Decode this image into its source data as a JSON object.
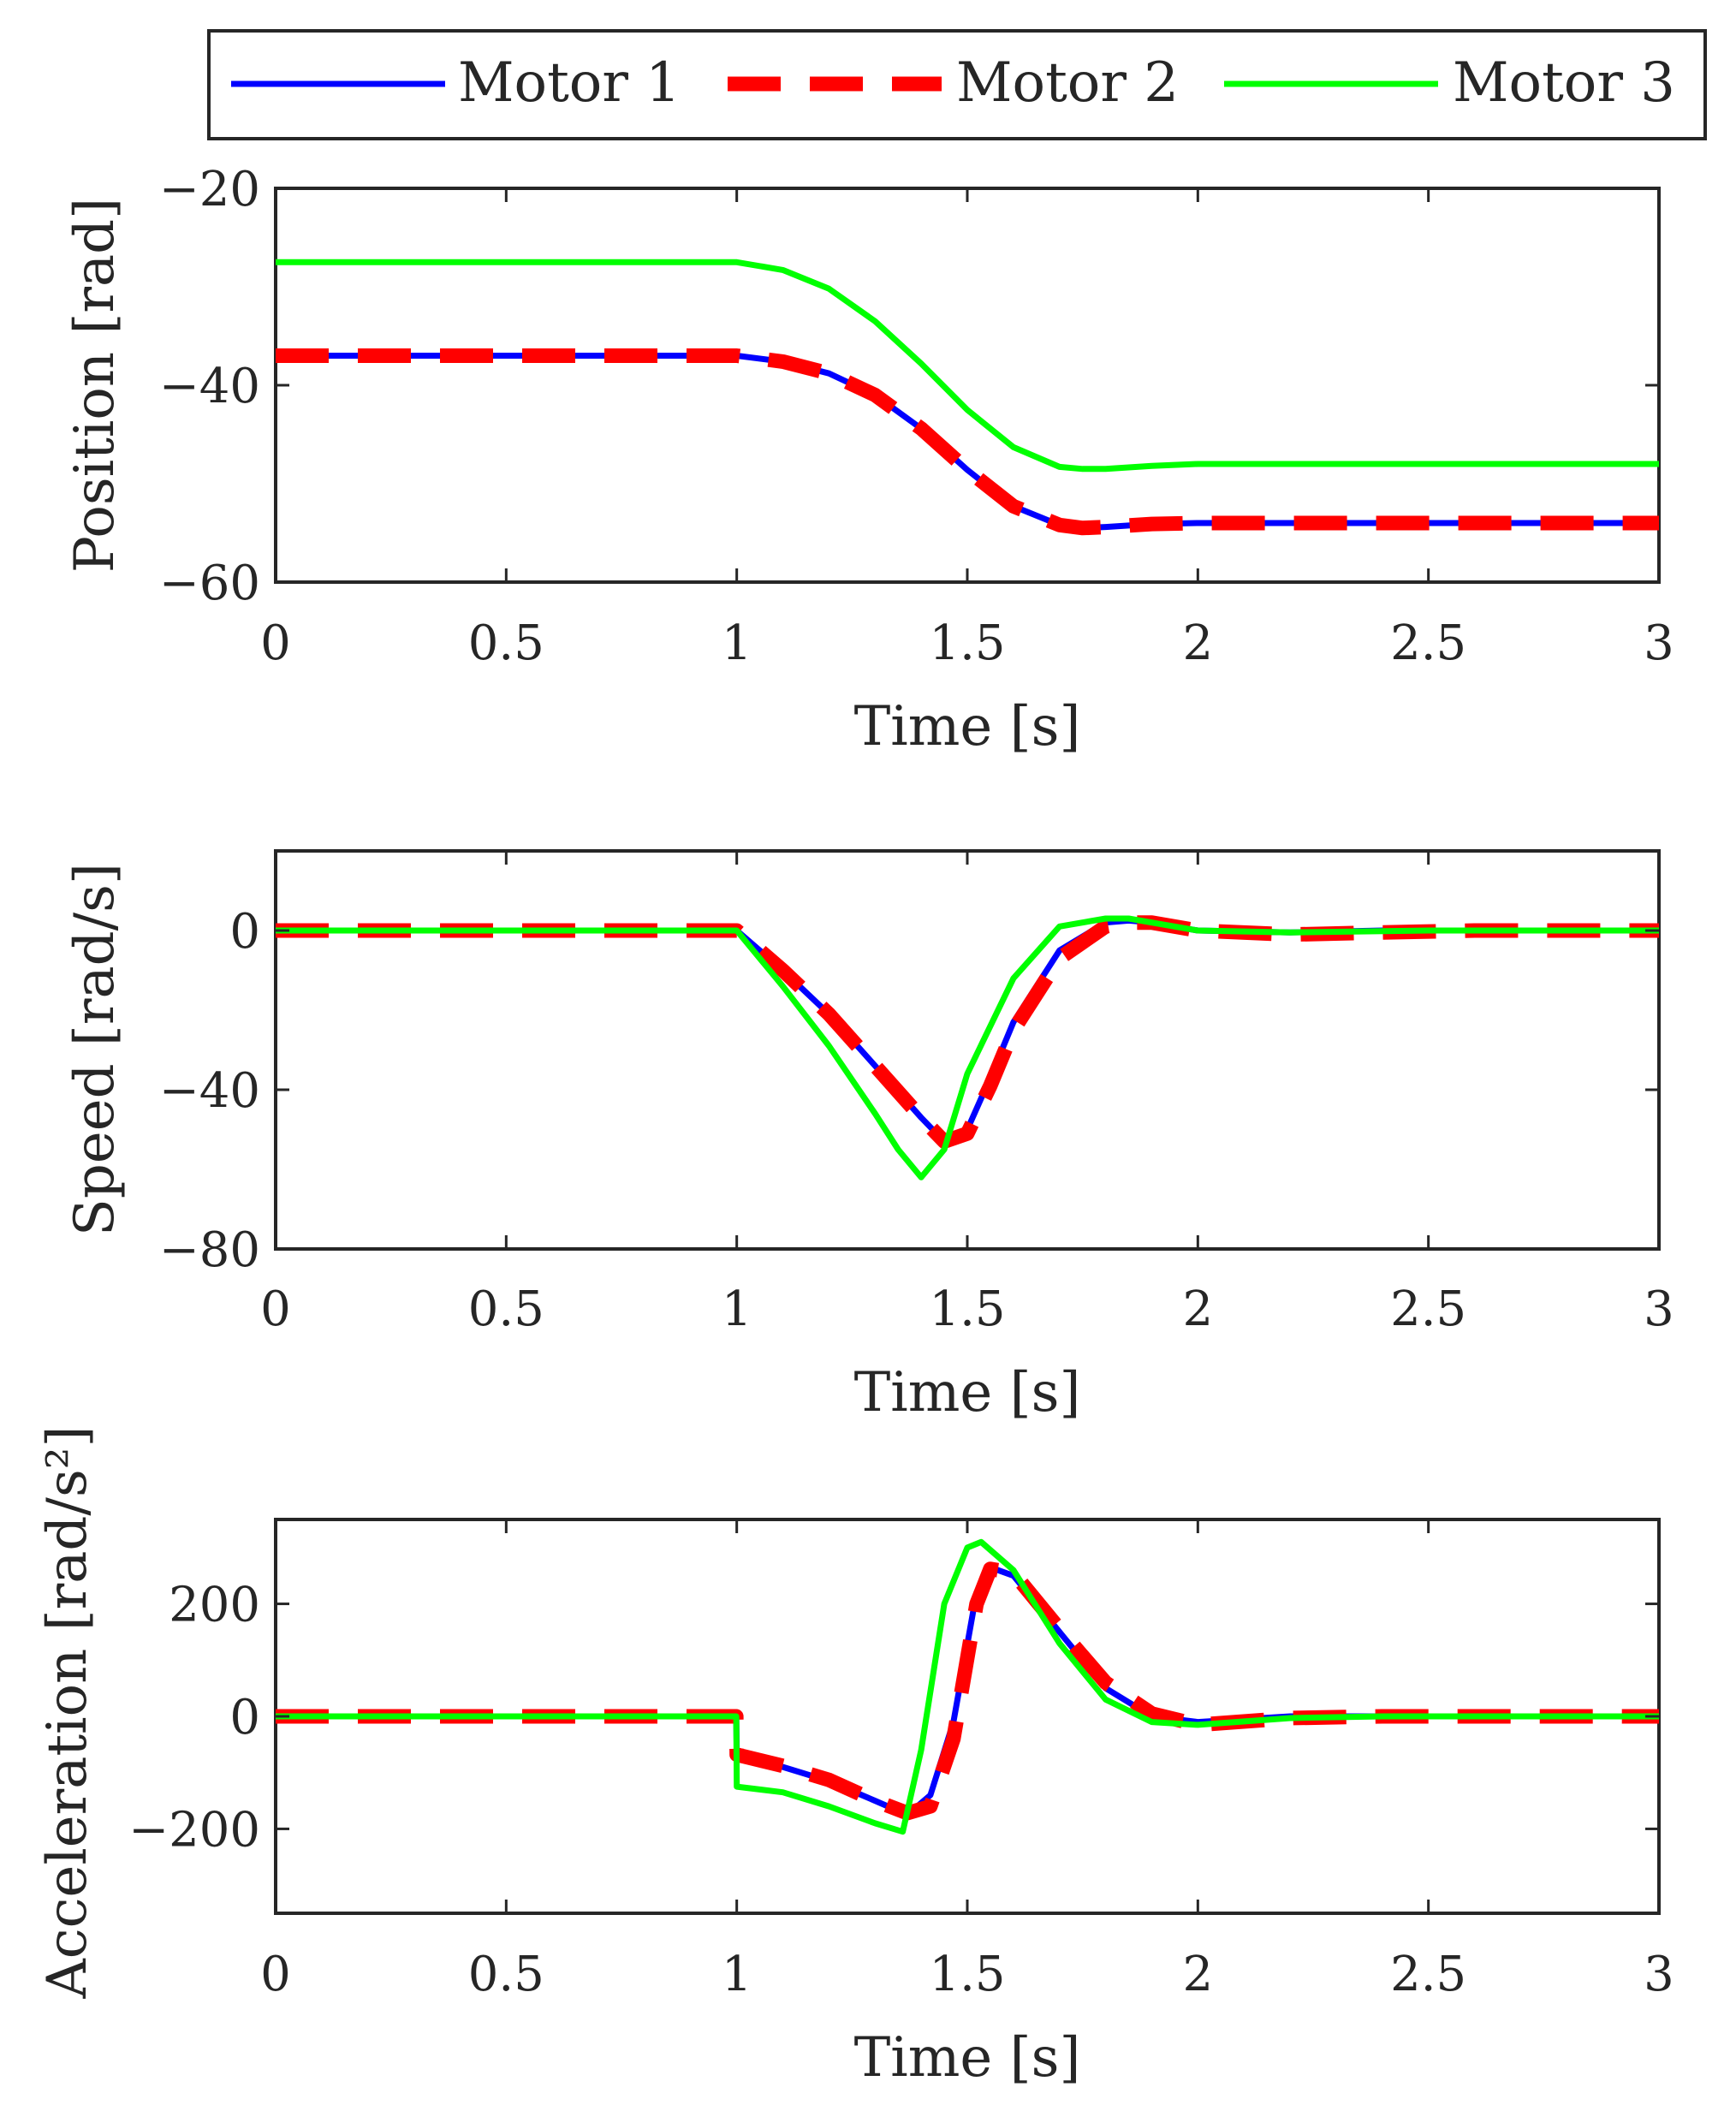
{
  "legend": {
    "entries": [
      {
        "label": "Motor 1",
        "color": "#0000ff",
        "style": "solid"
      },
      {
        "label": "Motor 2",
        "color": "#ff0000",
        "style": "dashed"
      },
      {
        "label": "Motor 3",
        "color": "#00ff00",
        "style": "solid"
      }
    ],
    "placement": "top"
  },
  "chart_data": [
    {
      "type": "line",
      "xlabel": "Time [s]",
      "ylabel": "Position [rad]",
      "xlim": [
        0,
        3
      ],
      "ylim": [
        -60,
        -20
      ],
      "xticks": [
        0,
        0.5,
        1,
        1.5,
        2,
        2.5,
        3
      ],
      "xtick_labels": [
        "0",
        "0.5",
        "1",
        "1.5",
        "2",
        "2.5",
        "3"
      ],
      "yticks": [
        -60,
        -40,
        -20
      ],
      "ytick_labels": [
        "−60",
        "−40",
        "−20"
      ],
      "series": [
        {
          "name": "Motor 1",
          "color": "#0000ff",
          "x": [
            0,
            1.0,
            1.1,
            1.2,
            1.3,
            1.4,
            1.5,
            1.6,
            1.7,
            1.75,
            1.8,
            1.9,
            2.0,
            2.2,
            2.5,
            3.0
          ],
          "y": [
            -37,
            -37,
            -37.6,
            -38.8,
            -41.0,
            -44.4,
            -48.6,
            -52.3,
            -54.2,
            -54.5,
            -54.4,
            -54.1,
            -54.0,
            -54.0,
            -54.0,
            -54.0
          ]
        },
        {
          "name": "Motor 2",
          "color": "#ff0000",
          "x": [
            0,
            1.0,
            1.1,
            1.2,
            1.3,
            1.4,
            1.5,
            1.6,
            1.7,
            1.75,
            1.8,
            1.9,
            2.0,
            2.2,
            2.5,
            3.0
          ],
          "y": [
            -37,
            -37,
            -37.6,
            -38.8,
            -41.0,
            -44.4,
            -48.6,
            -52.3,
            -54.2,
            -54.5,
            -54.4,
            -54.1,
            -54.0,
            -54.0,
            -54.0,
            -54.0
          ]
        },
        {
          "name": "Motor 3",
          "color": "#00ff00",
          "x": [
            0,
            1.0,
            1.1,
            1.2,
            1.3,
            1.4,
            1.5,
            1.6,
            1.7,
            1.75,
            1.8,
            1.9,
            2.0,
            2.2,
            2.5,
            3.0
          ],
          "y": [
            -27.5,
            -27.5,
            -28.3,
            -30.2,
            -33.5,
            -37.8,
            -42.5,
            -46.3,
            -48.3,
            -48.5,
            -48.5,
            -48.2,
            -48.0,
            -48.0,
            -48.0,
            -48.0
          ]
        }
      ]
    },
    {
      "type": "line",
      "xlabel": "Time [s]",
      "ylabel": "Speed [rad/s]",
      "xlim": [
        0,
        3
      ],
      "ylim": [
        -80,
        20
      ],
      "xticks": [
        0,
        0.5,
        1,
        1.5,
        2,
        2.5,
        3
      ],
      "xtick_labels": [
        "0",
        "0.5",
        "1",
        "1.5",
        "2",
        "2.5",
        "3"
      ],
      "yticks": [
        -80,
        -40,
        0
      ],
      "ytick_labels": [
        "−80",
        "−40",
        "0"
      ],
      "series": [
        {
          "name": "Motor 1",
          "color": "#0000ff",
          "x": [
            0,
            1.0,
            1.1,
            1.2,
            1.3,
            1.4,
            1.45,
            1.5,
            1.55,
            1.6,
            1.7,
            1.8,
            1.85,
            1.9,
            2.0,
            2.2,
            2.4,
            2.6,
            3.0
          ],
          "y": [
            0,
            0,
            -10,
            -21,
            -34,
            -47,
            -53,
            -50,
            -37,
            -23,
            -5,
            2,
            2.5,
            2,
            0,
            -0.5,
            0,
            0,
            0
          ]
        },
        {
          "name": "Motor 2",
          "color": "#ff0000",
          "x": [
            0,
            1.0,
            1.1,
            1.2,
            1.3,
            1.4,
            1.45,
            1.5,
            1.55,
            1.6,
            1.7,
            1.8,
            1.85,
            1.9,
            2.0,
            2.2,
            2.4,
            2.6,
            3.0
          ],
          "y": [
            0,
            0,
            -10,
            -21,
            -34,
            -47,
            -53,
            -51,
            -39,
            -25,
            -7,
            1,
            2,
            2,
            0,
            -1,
            -0.5,
            0,
            0
          ]
        },
        {
          "name": "Motor 3",
          "color": "#00ff00",
          "x": [
            0,
            1.0,
            1.1,
            1.2,
            1.3,
            1.35,
            1.4,
            1.45,
            1.5,
            1.6,
            1.7,
            1.8,
            1.85,
            1.9,
            2.0,
            2.2,
            2.5,
            3.0
          ],
          "y": [
            0,
            0,
            -14,
            -29,
            -46,
            -55,
            -62,
            -55,
            -36,
            -12,
            1,
            3,
            3,
            2,
            0,
            -0.5,
            0,
            0
          ]
        }
      ]
    },
    {
      "type": "line",
      "xlabel": "Time [s]",
      "ylabel": "Acceleration [rad/s²]",
      "xlim": [
        0,
        3
      ],
      "ylim": [
        -350,
        350
      ],
      "xticks": [
        0,
        0.5,
        1,
        1.5,
        2,
        2.5,
        3
      ],
      "xtick_labels": [
        "0",
        "0.5",
        "1",
        "1.5",
        "2",
        "2.5",
        "3"
      ],
      "yticks": [
        -200,
        0,
        200
      ],
      "ytick_labels": [
        "−200",
        "0",
        "200"
      ],
      "series": [
        {
          "name": "Motor 1",
          "color": "#0000ff",
          "x": [
            0,
            0.999,
            1.0,
            1.1,
            1.2,
            1.3,
            1.37,
            1.42,
            1.47,
            1.52,
            1.55,
            1.6,
            1.7,
            1.8,
            1.9,
            2.0,
            2.2,
            2.4,
            3.0
          ],
          "y": [
            0,
            0,
            -70,
            -90,
            -115,
            -150,
            -175,
            -140,
            -10,
            220,
            265,
            250,
            150,
            50,
            0,
            -10,
            0,
            0,
            0
          ]
        },
        {
          "name": "Motor 2",
          "color": "#ff0000",
          "x": [
            0,
            0.999,
            1.0,
            1.1,
            1.2,
            1.3,
            1.37,
            1.42,
            1.47,
            1.52,
            1.55,
            1.6,
            1.7,
            1.8,
            1.9,
            2.0,
            2.2,
            2.4,
            3.0
          ],
          "y": [
            0,
            0,
            -68,
            -88,
            -113,
            -150,
            -172,
            -160,
            -40,
            200,
            262,
            255,
            155,
            60,
            5,
            -15,
            -3,
            0,
            0
          ]
        },
        {
          "name": "Motor 3",
          "color": "#00ff00",
          "x": [
            0,
            0.999,
            1.0,
            1.1,
            1.2,
            1.3,
            1.36,
            1.4,
            1.45,
            1.5,
            1.53,
            1.6,
            1.7,
            1.8,
            1.9,
            2.0,
            2.2,
            2.4,
            3.0
          ],
          "y": [
            0,
            0,
            -125,
            -135,
            -160,
            -190,
            -205,
            -60,
            200,
            300,
            310,
            260,
            130,
            30,
            -10,
            -15,
            -3,
            0,
            0
          ]
        }
      ]
    }
  ]
}
